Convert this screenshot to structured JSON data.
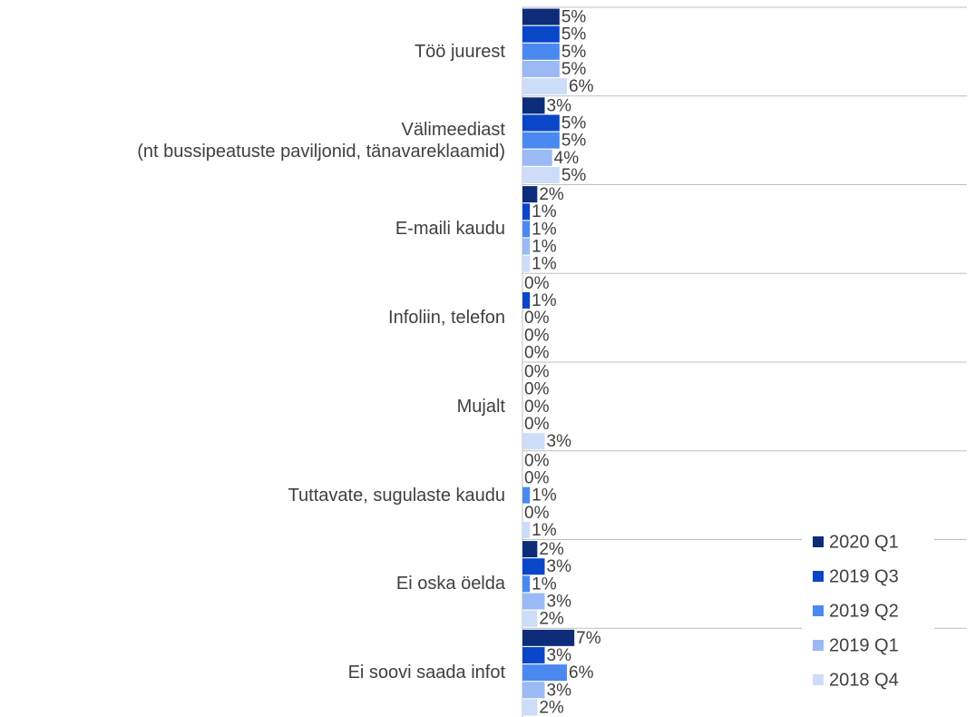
{
  "chart_data": {
    "type": "bar",
    "orientation": "horizontal",
    "categories": [
      "Töö juurest",
      "Välimeediast\n(nt bussipeatuste paviljonid, tänavareklaamid)",
      "E-maili kaudu",
      "Infoliin, telefon",
      "Mujalt",
      "Tuttavate, sugulaste kaudu",
      "Ei oska öelda",
      "Ei soovi saada infot"
    ],
    "series": [
      {
        "name": "2020 Q1",
        "color": "#0d2c7a",
        "values": [
          5,
          3,
          2,
          0,
          0,
          0,
          2,
          7
        ],
        "value_labels": [
          "5%",
          "3%",
          "2%",
          "0%",
          "0%",
          "0%",
          "2%",
          "7%"
        ]
      },
      {
        "name": "2019 Q3",
        "color": "#0a46c8",
        "values": [
          5,
          5,
          1,
          1,
          0,
          0,
          3,
          3
        ],
        "value_labels": [
          "5%",
          "5%",
          "1%",
          "1%",
          "0%",
          "0%",
          "3%",
          "3%"
        ]
      },
      {
        "name": "2019 Q2",
        "color": "#4a8af0",
        "values": [
          5,
          5,
          1,
          0,
          0,
          1,
          1,
          6
        ],
        "value_labels": [
          "5%",
          "5%",
          "1%",
          "0%",
          "0%",
          "1%",
          "1%",
          "6%"
        ]
      },
      {
        "name": "2019 Q1",
        "color": "#9ab9f5",
        "values": [
          5,
          4,
          1,
          0,
          0,
          0,
          3,
          3
        ],
        "value_labels": [
          "5%",
          "4%",
          "1%",
          "0%",
          "0%",
          "0%",
          "3%",
          "3%"
        ]
      },
      {
        "name": "2018 Q4",
        "color": "#cddcf8",
        "values": [
          6,
          5,
          1,
          0,
          3,
          1,
          2,
          2
        ],
        "value_labels": [
          "6%",
          "5%",
          "1%",
          "0%",
          "3%",
          "1%",
          "2%",
          "2%"
        ]
      }
    ],
    "xlim": [
      0,
      60
    ],
    "legend": "lower right"
  }
}
